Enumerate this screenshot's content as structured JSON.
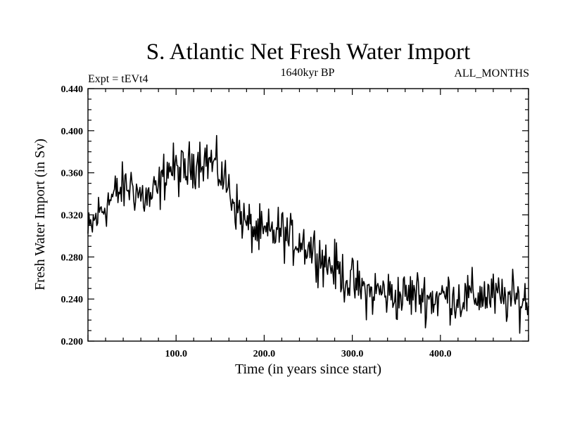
{
  "chart_data": {
    "type": "line",
    "title": "S. Atlantic Net Fresh Water Import",
    "subtitle_left": "Expt = tEVt4",
    "subtitle_center": "1640kyr BP",
    "subtitle_right": "ALL_MONTHS",
    "xlabel": "Time (in years since start)",
    "ylabel": "Fresh Water Import (in Sv)",
    "xlim": [
      0,
      500
    ],
    "ylim": [
      0.2,
      0.44
    ],
    "xticks": [
      100,
      200,
      300,
      400
    ],
    "xtick_labels": [
      "100.0",
      "200.0",
      "300.0",
      "400.0"
    ],
    "yticks": [
      0.2,
      0.24,
      0.28,
      0.32,
      0.36,
      0.4,
      0.44
    ],
    "ytick_labels": [
      "0.200",
      "0.240",
      "0.280",
      "0.320",
      "0.360",
      "0.400",
      "0.440"
    ],
    "series": [
      {
        "name": "Net Fresh Water Import",
        "trend_x": [
          0,
          5,
          10,
          20,
          30,
          40,
          50,
          60,
          70,
          80,
          90,
          100,
          110,
          120,
          130,
          140,
          150,
          160,
          170,
          180,
          190,
          200,
          210,
          220,
          230,
          240,
          250,
          260,
          270,
          280,
          290,
          300,
          310,
          320,
          330,
          340,
          350,
          360,
          370,
          380,
          390,
          400,
          410,
          420,
          430,
          440,
          450,
          460,
          470,
          480,
          490,
          500
        ],
        "trend_y": [
          0.3,
          0.31,
          0.318,
          0.33,
          0.338,
          0.345,
          0.348,
          0.338,
          0.335,
          0.343,
          0.365,
          0.362,
          0.36,
          0.37,
          0.375,
          0.37,
          0.36,
          0.345,
          0.325,
          0.31,
          0.305,
          0.3,
          0.303,
          0.305,
          0.295,
          0.297,
          0.29,
          0.285,
          0.275,
          0.27,
          0.262,
          0.255,
          0.25,
          0.245,
          0.248,
          0.245,
          0.242,
          0.243,
          0.245,
          0.244,
          0.24,
          0.242,
          0.244,
          0.24,
          0.242,
          0.243,
          0.244,
          0.242,
          0.24,
          0.24,
          0.238,
          0.24
        ],
        "noise_amplitude": 0.018,
        "samples": 500
      }
    ]
  }
}
